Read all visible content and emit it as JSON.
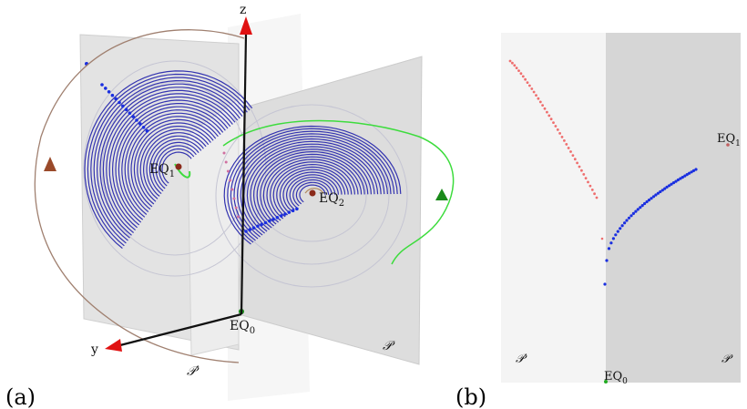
{
  "panel_a": {
    "tag": "(a)",
    "axis_z": "z",
    "axis_y": "y",
    "eq0": {
      "main": "EQ",
      "sub": "0"
    },
    "eq1": {
      "main": "EQ",
      "sub": "1"
    },
    "eq2": {
      "main": "EQ",
      "sub": "2"
    },
    "plane_p": "𝒫",
    "plane_pprime": "𝒫′"
  },
  "panel_b": {
    "tag": "(b)",
    "eq0": {
      "main": "EQ",
      "sub": "0"
    },
    "eq1": {
      "main": "EQ",
      "sub": "1"
    },
    "plane_p": "𝒫",
    "plane_pprime": "𝒫′"
  },
  "colors": {
    "orbit_blue": "#2b2bb5",
    "points_blue": "#1a2fe0",
    "points_red": "#ef6e6e",
    "green_curve": "#3ddc3d",
    "axis_red": "#e01212",
    "plane_light": "#f4f4f4",
    "plane_gray": "#d6d6d6"
  }
}
